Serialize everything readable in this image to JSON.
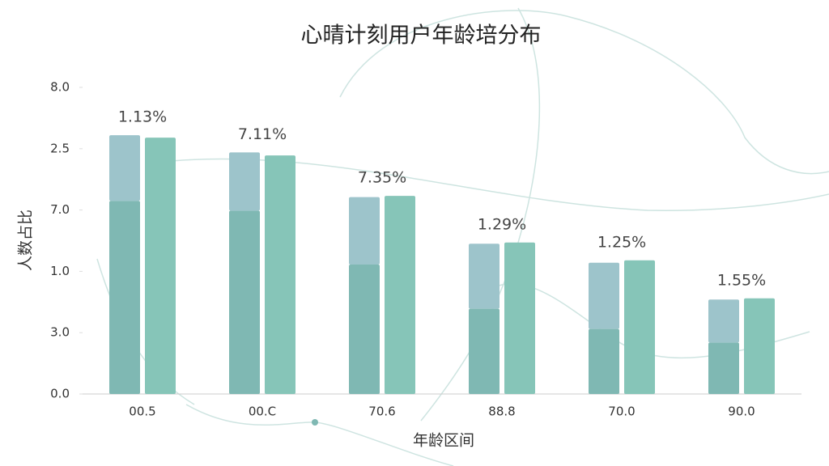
{
  "chart_data": {
    "type": "bar",
    "title": "心晴计刻用户年龄培分布",
    "x_label": "年龄区间",
    "y_label": "人数占比",
    "categories": [
      "00.5",
      "00.C",
      "70.6",
      "88.8",
      "70.0",
      "90.0"
    ],
    "series": [
      {
        "color": "#7fb8b3",
        "values": [
          3.15,
          2.99,
          2.11,
          1.39,
          1.06,
          0.84
        ]
      },
      {
        "color": "#9dc4cb",
        "values": [
          1.07,
          0.95,
          1.1,
          1.06,
          1.08,
          0.7
        ]
      },
      {
        "color": "#86c5b8",
        "values": [
          4.18,
          3.89,
          3.23,
          2.47,
          2.18,
          1.56
        ]
      }
    ],
    "annotations": [
      "1.13%",
      "7.11%",
      "7.35%",
      "1.29%",
      "1.25%",
      "1.55%"
    ],
    "ylim": [
      0,
      5
    ],
    "yticks": [
      {
        "value": 0,
        "label": "0.0"
      },
      {
        "value": 1,
        "label": "3.0"
      },
      {
        "value": 2,
        "label": "1.0"
      },
      {
        "value": 3,
        "label": "7.0"
      },
      {
        "value": 4,
        "label": "2.5"
      },
      {
        "value": 5,
        "label": "8.0"
      }
    ]
  }
}
